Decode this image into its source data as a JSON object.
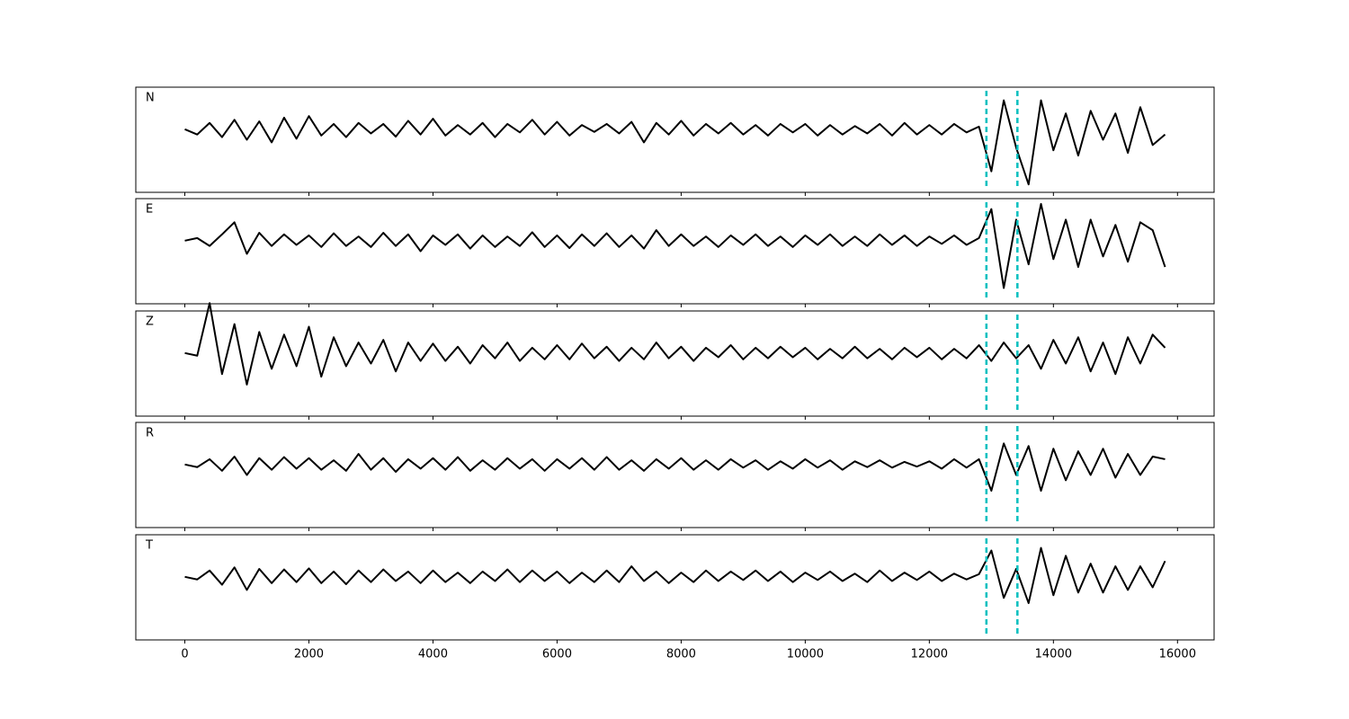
{
  "chart_data": {
    "type": "line",
    "x": [
      0,
      200,
      400,
      600,
      800,
      1000,
      1200,
      1400,
      1600,
      1800,
      2000,
      2200,
      2400,
      2600,
      2800,
      3000,
      3200,
      3400,
      3600,
      3800,
      4000,
      4200,
      4400,
      4600,
      4800,
      5000,
      5200,
      5400,
      5600,
      5800,
      6000,
      6200,
      6400,
      6600,
      6800,
      7000,
      7200,
      7400,
      7600,
      7800,
      8000,
      8200,
      8400,
      8600,
      8800,
      9000,
      9200,
      9400,
      9600,
      9800,
      10000,
      10200,
      10400,
      10600,
      10800,
      11000,
      11200,
      11400,
      11600,
      11800,
      12000,
      12200,
      12400,
      12600,
      12800,
      13000,
      13200,
      13400,
      13600,
      13800,
      14000,
      14200,
      14400,
      14600,
      14800,
      15000,
      15200,
      15400,
      15600,
      15800
    ],
    "series": [
      {
        "name": "N",
        "color": "#000000",
        "values": [
          0.0,
          -0.1,
          0.12,
          -0.15,
          0.18,
          -0.2,
          0.15,
          -0.25,
          0.22,
          -0.18,
          0.25,
          -0.12,
          0.1,
          -0.15,
          0.12,
          -0.08,
          0.1,
          -0.14,
          0.16,
          -0.1,
          0.2,
          -0.12,
          0.08,
          -0.1,
          0.12,
          -0.15,
          0.1,
          -0.06,
          0.18,
          -0.1,
          0.14,
          -0.12,
          0.08,
          -0.05,
          0.1,
          -0.08,
          0.14,
          -0.25,
          0.12,
          -0.1,
          0.16,
          -0.12,
          0.1,
          -0.08,
          0.12,
          -0.1,
          0.08,
          -0.12,
          0.1,
          -0.06,
          0.1,
          -0.12,
          0.08,
          -0.1,
          0.06,
          -0.08,
          0.1,
          -0.12,
          0.12,
          -0.1,
          0.08,
          -0.1,
          0.1,
          -0.06,
          0.05,
          -0.8,
          0.55,
          -0.35,
          -1.05,
          0.55,
          -0.4,
          0.3,
          -0.5,
          0.35,
          -0.2,
          0.3,
          -0.45,
          0.42,
          -0.3,
          -0.1
        ]
      },
      {
        "name": "E",
        "color": "#000000",
        "values": [
          0.0,
          0.05,
          -0.1,
          0.12,
          0.35,
          -0.25,
          0.15,
          -0.1,
          0.12,
          -0.08,
          0.1,
          -0.12,
          0.14,
          -0.1,
          0.08,
          -0.12,
          0.15,
          -0.1,
          0.12,
          -0.2,
          0.1,
          -0.08,
          0.12,
          -0.15,
          0.1,
          -0.12,
          0.08,
          -0.1,
          0.16,
          -0.12,
          0.1,
          -0.14,
          0.12,
          -0.1,
          0.14,
          -0.12,
          0.1,
          -0.15,
          0.2,
          -0.1,
          0.12,
          -0.1,
          0.08,
          -0.12,
          0.1,
          -0.08,
          0.12,
          -0.1,
          0.08,
          -0.12,
          0.1,
          -0.08,
          0.12,
          -0.1,
          0.08,
          -0.1,
          0.12,
          -0.08,
          0.1,
          -0.1,
          0.08,
          -0.06,
          0.1,
          -0.08,
          0.05,
          0.6,
          -0.9,
          0.4,
          -0.45,
          0.7,
          -0.35,
          0.4,
          -0.5,
          0.4,
          -0.3,
          0.3,
          -0.4,
          0.35,
          0.2,
          -0.5
        ]
      },
      {
        "name": "Z",
        "color": "#000000",
        "values": [
          0.0,
          -0.05,
          0.95,
          -0.4,
          0.55,
          -0.6,
          0.4,
          -0.3,
          0.35,
          -0.25,
          0.5,
          -0.45,
          0.3,
          -0.25,
          0.2,
          -0.2,
          0.25,
          -0.35,
          0.2,
          -0.15,
          0.18,
          -0.15,
          0.12,
          -0.2,
          0.15,
          -0.1,
          0.2,
          -0.15,
          0.1,
          -0.12,
          0.15,
          -0.12,
          0.18,
          -0.1,
          0.12,
          -0.15,
          0.1,
          -0.12,
          0.2,
          -0.1,
          0.12,
          -0.15,
          0.1,
          -0.08,
          0.15,
          -0.12,
          0.1,
          -0.1,
          0.12,
          -0.08,
          0.1,
          -0.12,
          0.08,
          -0.1,
          0.12,
          -0.1,
          0.08,
          -0.12,
          0.1,
          -0.08,
          0.1,
          -0.12,
          0.08,
          -0.1,
          0.15,
          -0.15,
          0.2,
          -0.1,
          0.15,
          -0.3,
          0.25,
          -0.2,
          0.3,
          -0.35,
          0.2,
          -0.4,
          0.3,
          -0.2,
          0.35,
          0.1
        ]
      },
      {
        "name": "R",
        "color": "#000000",
        "values": [
          0.0,
          -0.05,
          0.1,
          -0.12,
          0.15,
          -0.2,
          0.12,
          -0.1,
          0.14,
          -0.08,
          0.12,
          -0.1,
          0.08,
          -0.12,
          0.2,
          -0.1,
          0.12,
          -0.14,
          0.1,
          -0.08,
          0.12,
          -0.1,
          0.14,
          -0.12,
          0.08,
          -0.1,
          0.12,
          -0.08,
          0.1,
          -0.12,
          0.1,
          -0.08,
          0.12,
          -0.1,
          0.14,
          -0.1,
          0.08,
          -0.12,
          0.1,
          -0.08,
          0.12,
          -0.1,
          0.08,
          -0.1,
          0.1,
          -0.06,
          0.08,
          -0.1,
          0.06,
          -0.08,
          0.1,
          -0.06,
          0.08,
          -0.1,
          0.06,
          -0.05,
          0.08,
          -0.06,
          0.05,
          -0.04,
          0.06,
          -0.08,
          0.1,
          -0.06,
          0.1,
          -0.5,
          0.4,
          -0.2,
          0.35,
          -0.5,
          0.3,
          -0.3,
          0.25,
          -0.2,
          0.3,
          -0.25,
          0.2,
          -0.2,
          0.15,
          0.1
        ]
      },
      {
        "name": "T",
        "color": "#000000",
        "values": [
          0.0,
          -0.05,
          0.12,
          -0.15,
          0.18,
          -0.25,
          0.15,
          -0.12,
          0.14,
          -0.1,
          0.16,
          -0.12,
          0.1,
          -0.14,
          0.12,
          -0.1,
          0.14,
          -0.08,
          0.1,
          -0.12,
          0.12,
          -0.1,
          0.08,
          -0.12,
          0.1,
          -0.08,
          0.14,
          -0.1,
          0.12,
          -0.08,
          0.1,
          -0.12,
          0.08,
          -0.1,
          0.12,
          -0.1,
          0.2,
          -0.08,
          0.1,
          -0.12,
          0.08,
          -0.1,
          0.12,
          -0.08,
          0.1,
          -0.06,
          0.12,
          -0.08,
          0.1,
          -0.1,
          0.08,
          -0.06,
          0.1,
          -0.08,
          0.06,
          -0.1,
          0.12,
          -0.08,
          0.08,
          -0.06,
          0.1,
          -0.08,
          0.06,
          -0.05,
          0.05,
          0.5,
          -0.4,
          0.15,
          -0.5,
          0.55,
          -0.35,
          0.4,
          -0.3,
          0.25,
          -0.3,
          0.2,
          -0.25,
          0.2,
          -0.2,
          0.3
        ]
      }
    ],
    "vlines": [
      12920,
      13420
    ],
    "vline_color": "#00bfbf",
    "xlim": [
      -790,
      16590
    ],
    "xticks": [
      0,
      2000,
      4000,
      6000,
      8000,
      10000,
      12000,
      14000,
      16000
    ],
    "ylim": [
      -1.2,
      0.8
    ]
  }
}
